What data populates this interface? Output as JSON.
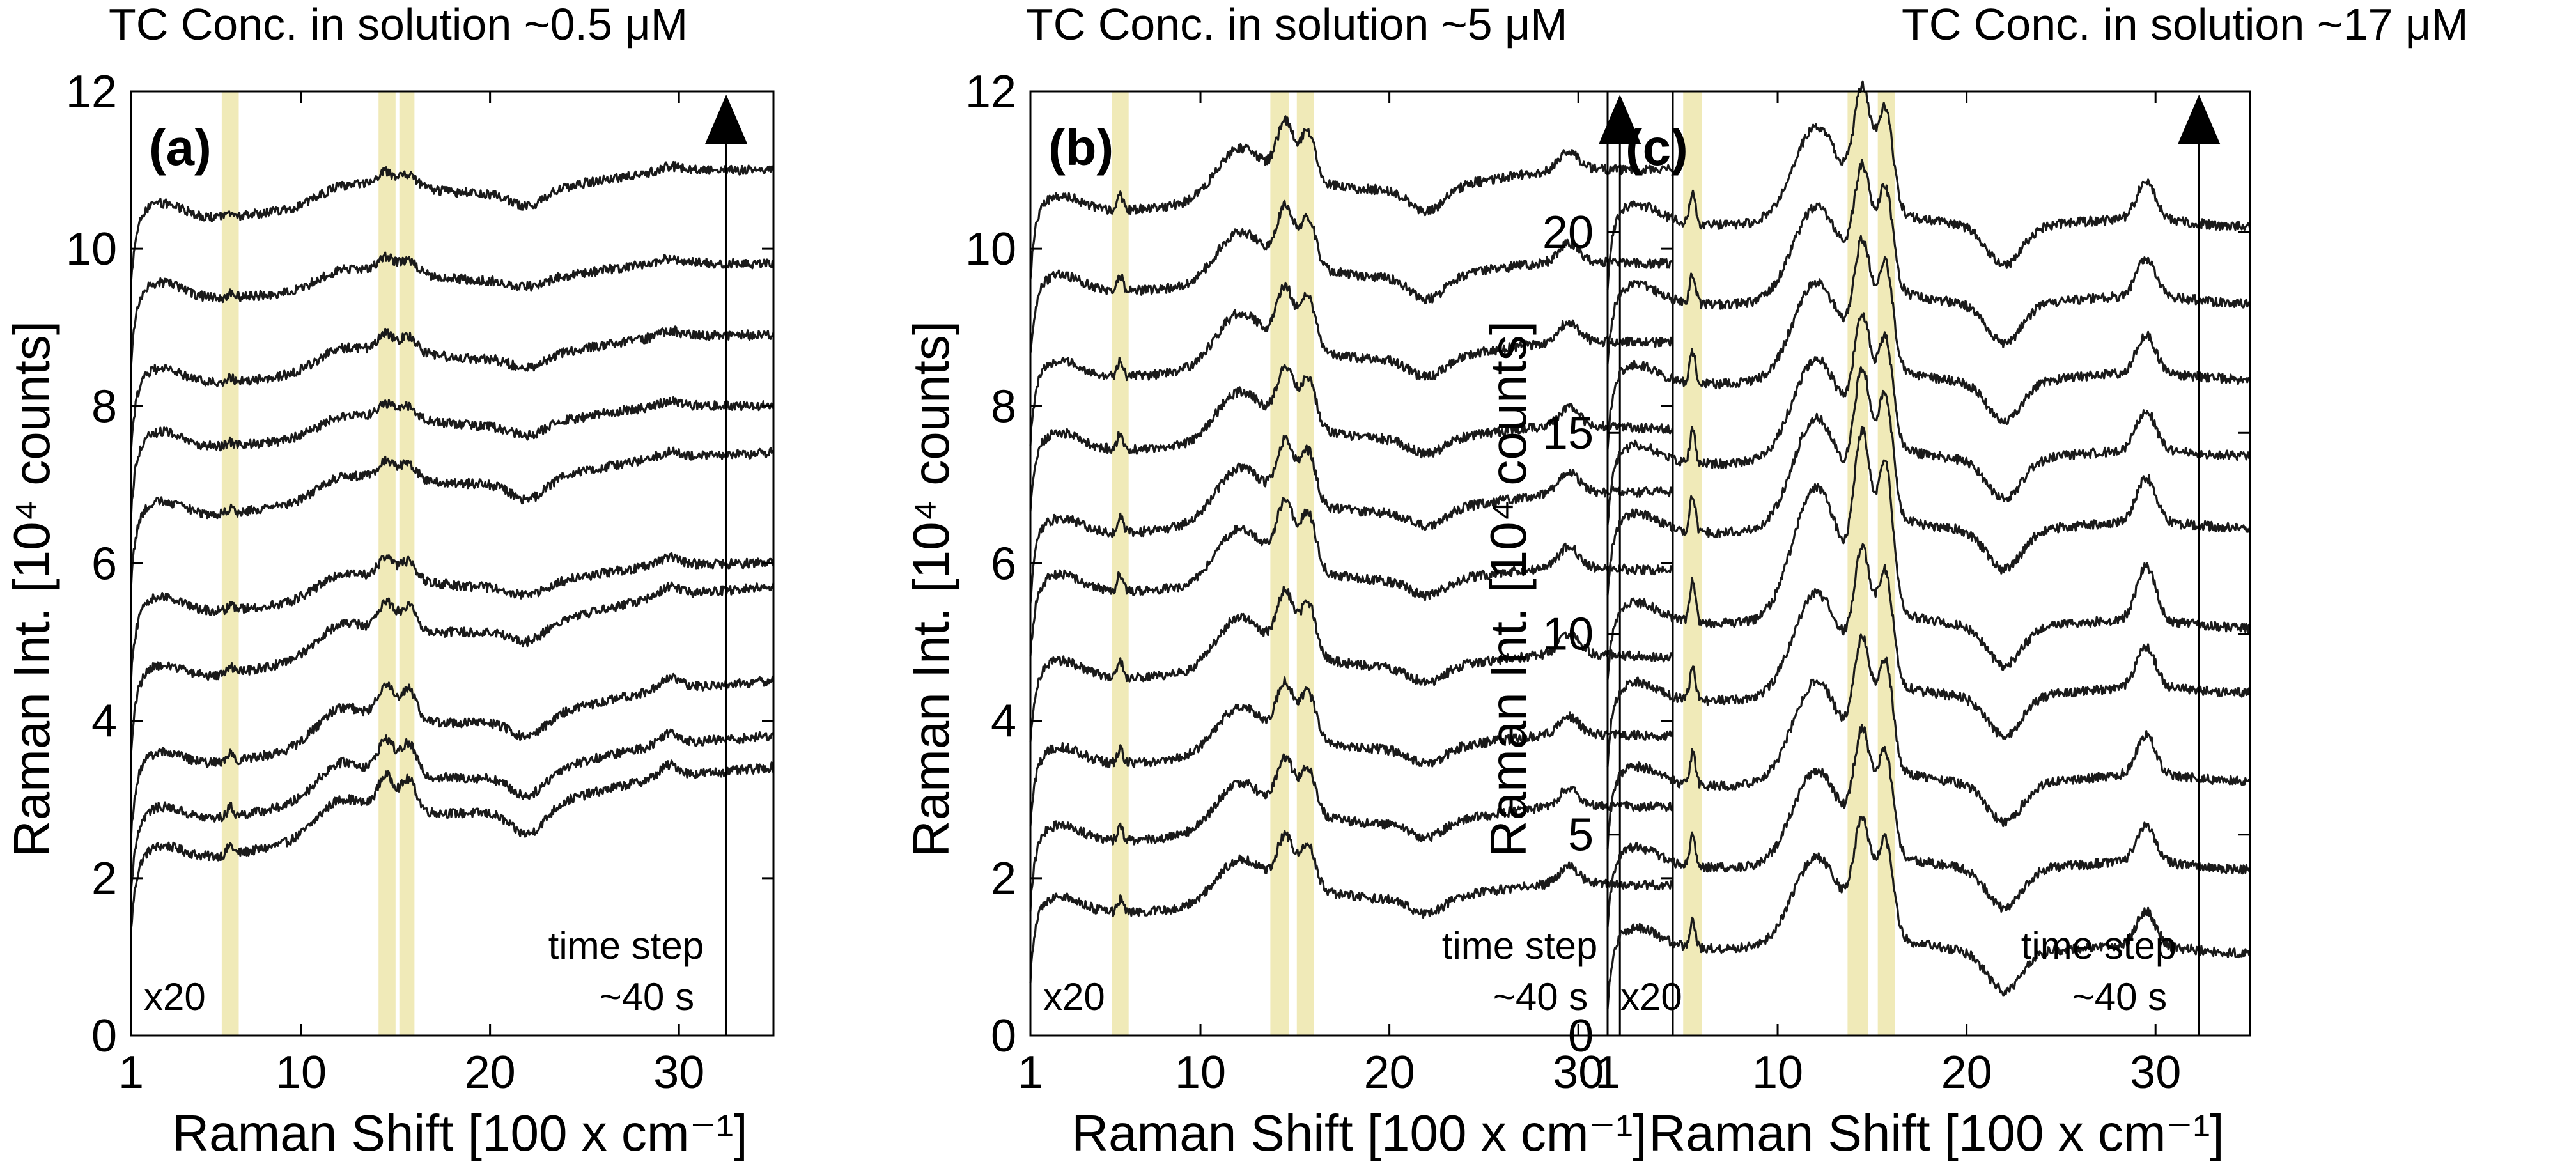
{
  "figure": {
    "panel_letters": [
      "(a)",
      "(b)",
      "(c)"
    ]
  },
  "chart_data": [
    {
      "type": "line",
      "panel": "(a)",
      "title": "TC Conc. in solution ~0.5 μM",
      "xlabel": "Raman Shift [100 x cm⁻¹]",
      "ylabel": "Raman Int. [10⁴ counts]",
      "xlim": [
        1,
        35
      ],
      "ylim": [
        0,
        12
      ],
      "xticks": [
        1,
        10,
        20,
        30
      ],
      "yticks": [
        0,
        2,
        4,
        6,
        8,
        10,
        12
      ],
      "grid": false,
      "legend": "none",
      "highlight_bands": [
        [
          5.8,
          6.7
        ],
        [
          14.1,
          15.0
        ],
        [
          15.2,
          16.0
        ]
      ],
      "highlight_color": "#f0eab8",
      "trace_color": "#1a1a1a",
      "annotations": {
        "scale": "x20",
        "time_step": "time step",
        "time_step_value": "~40 s",
        "time_arrow_x": 32.5
      },
      "series": [
        {
          "baseline": 2.1,
          "end": 3.4,
          "feature_strength": 1.0,
          "dip": 0.35
        },
        {
          "baseline": 2.6,
          "end": 3.8,
          "feature_strength": 1.0,
          "dip": 0.3
        },
        {
          "baseline": 3.3,
          "end": 4.5,
          "feature_strength": 1.0,
          "dip": 0.25
        },
        {
          "baseline": 4.4,
          "end": 5.7,
          "feature_strength": 0.8,
          "dip": 0.2
        },
        {
          "baseline": 5.3,
          "end": 6.0,
          "feature_strength": 0.6,
          "dip": 0.15
        },
        {
          "baseline": 6.5,
          "end": 7.4,
          "feature_strength": 0.5,
          "dip": 0.25
        },
        {
          "baseline": 7.4,
          "end": 8.0,
          "feature_strength": 0.4,
          "dip": 0.15
        },
        {
          "baseline": 8.2,
          "end": 8.9,
          "feature_strength": 0.5,
          "dip": 0.15
        },
        {
          "baseline": 9.3,
          "end": 9.8,
          "feature_strength": 0.4,
          "dip": 0.1
        },
        {
          "baseline": 10.3,
          "end": 11.0,
          "feature_strength": 0.4,
          "dip": 0.2
        }
      ]
    },
    {
      "type": "line",
      "panel": "(b)",
      "title": "TC Conc. in solution ~5 μM",
      "xlabel": "Raman Shift [100 x cm⁻¹]",
      "ylabel": "Raman Int. [10⁴ counts]",
      "xlim": [
        1,
        35
      ],
      "ylim": [
        0,
        12
      ],
      "xticks": [
        1,
        10,
        20,
        30
      ],
      "yticks": [
        0,
        2,
        4,
        6,
        8,
        10,
        12
      ],
      "grid": false,
      "legend": "none",
      "highlight_bands": [
        [
          5.3,
          6.2
        ],
        [
          13.7,
          14.7
        ],
        [
          15.1,
          16.0
        ]
      ],
      "highlight_color": "#f0eab8",
      "trace_color": "#1a1a1a",
      "annotations": {
        "scale": "x20",
        "time_step": "time step",
        "time_step_value": "~40 s",
        "time_arrow_x": 32.2
      },
      "series": [
        {
          "baseline": 1.5,
          "end": 1.9,
          "feature_strength": 1.4,
          "dip": 0.2
        },
        {
          "baseline": 2.4,
          "end": 2.9,
          "feature_strength": 1.5,
          "dip": 0.2
        },
        {
          "baseline": 3.4,
          "end": 3.8,
          "feature_strength": 1.5,
          "dip": 0.2
        },
        {
          "baseline": 4.5,
          "end": 4.8,
          "feature_strength": 1.7,
          "dip": 0.2
        },
        {
          "baseline": 5.6,
          "end": 5.9,
          "feature_strength": 1.8,
          "dip": 0.2
        },
        {
          "baseline": 6.3,
          "end": 6.9,
          "feature_strength": 1.7,
          "dip": 0.2
        },
        {
          "baseline": 7.4,
          "end": 7.7,
          "feature_strength": 1.6,
          "dip": 0.2
        },
        {
          "baseline": 8.3,
          "end": 8.8,
          "feature_strength": 1.7,
          "dip": 0.25
        },
        {
          "baseline": 9.4,
          "end": 9.8,
          "feature_strength": 1.6,
          "dip": 0.3
        },
        {
          "baseline": 10.4,
          "end": 11.0,
          "feature_strength": 1.6,
          "dip": 0.3
        }
      ]
    },
    {
      "type": "line",
      "panel": "(c)",
      "title": "TC Conc. in solution ~17 μM",
      "xlabel": "Raman Shift [100 x cm⁻¹]",
      "ylabel": "Raman Int. [10⁴ counts]",
      "xlim": [
        1,
        35
      ],
      "ylim": [
        0,
        23.5
      ],
      "xticks": [
        1,
        10,
        20,
        30
      ],
      "yticks": [
        0,
        5,
        10,
        15,
        20
      ],
      "grid": false,
      "legend": "none",
      "highlight_bands": [
        [
          5.0,
          6.0
        ],
        [
          13.7,
          14.8
        ],
        [
          15.3,
          16.2
        ]
      ],
      "highlight_color": "#f0eab8",
      "trace_color": "#1a1a1a",
      "annotations": {
        "scale": "x20",
        "time_step": "time step",
        "time_step_value": "~40 s",
        "time_arrow_x": 32.3
      },
      "series": [
        {
          "baseline": 2.2,
          "end": 2.0,
          "feature_strength": 3.0,
          "dip": 0.5
        },
        {
          "baseline": 4.2,
          "end": 4.1,
          "feature_strength": 3.2,
          "dip": 0.5
        },
        {
          "baseline": 6.2,
          "end": 6.3,
          "feature_strength": 3.4,
          "dip": 0.5
        },
        {
          "baseline": 8.3,
          "end": 8.5,
          "feature_strength": 3.5,
          "dip": 0.5
        },
        {
          "baseline": 10.3,
          "end": 10.1,
          "feature_strength": 4.6,
          "dip": 0.5
        },
        {
          "baseline": 12.5,
          "end": 12.6,
          "feature_strength": 3.8,
          "dip": 0.5
        },
        {
          "baseline": 14.2,
          "end": 14.4,
          "feature_strength": 3.4,
          "dip": 0.5
        },
        {
          "baseline": 16.2,
          "end": 16.3,
          "feature_strength": 3.3,
          "dip": 0.5
        },
        {
          "baseline": 18.2,
          "end": 18.2,
          "feature_strength": 3.2,
          "dip": 0.5
        },
        {
          "baseline": 20.2,
          "end": 20.1,
          "feature_strength": 3.2,
          "dip": 0.5
        }
      ]
    }
  ]
}
